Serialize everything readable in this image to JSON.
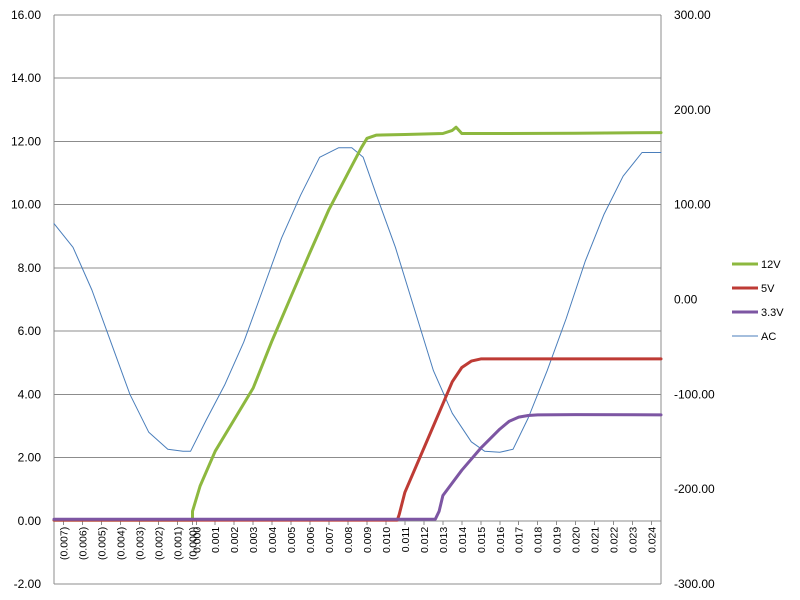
{
  "chart_data": {
    "type": "line",
    "title": "",
    "xlabel": "",
    "ylabel": "",
    "y2label": "",
    "grid": true,
    "legend_placement": "right",
    "xlim": [
      -0.0075,
      0.0245
    ],
    "ylim": [
      -2,
      16
    ],
    "y2lim": [
      -300,
      300
    ],
    "y_ticks": [
      "-2.00",
      "0.00",
      "2.00",
      "4.00",
      "6.00",
      "8.00",
      "10.00",
      "12.00",
      "14.00",
      "16.00"
    ],
    "y2_ticks": [
      "-300.00",
      "-200.00",
      "-100.00",
      "0.00",
      "100.00",
      "200.00",
      "300.00"
    ],
    "x_ticks": [
      "(0.007)",
      "(0.006)",
      "(0.005)",
      "(0.004)",
      "(0.003)",
      "(0.002)",
      "(0.001)",
      "(0.000)",
      "0.000",
      "0.001",
      "0.002",
      "0.003",
      "0.004",
      "0.005",
      "0.006",
      "0.007",
      "0.008",
      "0.009",
      "0.010",
      "0.011",
      "0.012",
      "0.013",
      "0.014",
      "0.015",
      "0.016",
      "0.017",
      "0.018",
      "0.019",
      "0.020",
      "0.021",
      "0.022",
      "0.023",
      "0.024"
    ],
    "x_tick_values": [
      -0.007,
      -0.006,
      -0.005,
      -0.004,
      -0.003,
      -0.002,
      -0.001,
      -0.0002,
      0.0,
      0.001,
      0.002,
      0.003,
      0.004,
      0.005,
      0.006,
      0.007,
      0.008,
      0.009,
      0.01,
      0.011,
      0.012,
      0.013,
      0.014,
      0.015,
      0.016,
      0.017,
      0.018,
      0.019,
      0.02,
      0.021,
      0.022,
      0.023,
      0.024
    ],
    "series": [
      {
        "name": "12V",
        "axis": "left",
        "color": "#8DB83F",
        "width": 3,
        "x": [
          -0.0075,
          -0.0002,
          -0.0002,
          0.0002,
          0.001,
          0.002,
          0.003,
          0.004,
          0.005,
          0.006,
          0.007,
          0.008,
          0.0087,
          0.009,
          0.0095,
          0.011,
          0.013,
          0.0135,
          0.0137,
          0.014,
          0.016,
          0.02,
          0.0245
        ],
        "y": [
          0.02,
          0.02,
          0.3,
          1.1,
          2.2,
          3.2,
          4.2,
          5.7,
          7.1,
          8.5,
          9.85,
          11.0,
          11.8,
          12.1,
          12.2,
          12.22,
          12.25,
          12.35,
          12.45,
          12.25,
          12.25,
          12.26,
          12.28
        ]
      },
      {
        "name": "5V",
        "axis": "left",
        "color": "#BE3B35",
        "width": 3,
        "x": [
          -0.0075,
          0.0106,
          0.0107,
          0.011,
          0.012,
          0.013,
          0.0135,
          0.014,
          0.0145,
          0.015,
          0.016,
          0.02,
          0.0245
        ],
        "y": [
          0.02,
          0.02,
          0.2,
          0.9,
          2.3,
          3.7,
          4.4,
          4.85,
          5.05,
          5.12,
          5.12,
          5.12,
          5.12
        ]
      },
      {
        "name": "3.3V",
        "axis": "left",
        "color": "#7D56A3",
        "width": 3,
        "x": [
          -0.0075,
          0.0126,
          0.0128,
          0.013,
          0.014,
          0.015,
          0.016,
          0.0165,
          0.017,
          0.0175,
          0.018,
          0.02,
          0.0245
        ],
        "y": [
          0.05,
          0.05,
          0.3,
          0.8,
          1.6,
          2.3,
          2.9,
          3.15,
          3.28,
          3.33,
          3.35,
          3.36,
          3.35
        ]
      },
      {
        "name": "AC",
        "axis": "right",
        "color": "#4A7EBB",
        "width": 1,
        "x": [
          -0.0075,
          -0.0065,
          -0.0055,
          -0.0045,
          -0.0035,
          -0.0025,
          -0.0015,
          -0.0007,
          -0.0003,
          0.0005,
          0.0015,
          0.0025,
          0.0035,
          0.0045,
          0.0055,
          0.0065,
          0.0075,
          0.0082,
          0.0088,
          0.0095,
          0.0105,
          0.0115,
          0.0125,
          0.0135,
          0.0145,
          0.0152,
          0.016,
          0.0167,
          0.0175,
          0.0185,
          0.0195,
          0.0205,
          0.0215,
          0.0225,
          0.0235,
          0.0245
        ],
        "y": [
          80,
          55,
          10,
          -45,
          -100,
          -140,
          -158,
          -160,
          -160,
          -128,
          -90,
          -45,
          10,
          65,
          110,
          150,
          160,
          160,
          150,
          110,
          55,
          -10,
          -75,
          -120,
          -150,
          -160,
          -161,
          -158,
          -125,
          -75,
          -20,
          40,
          90,
          130,
          155,
          155
        ]
      }
    ]
  }
}
